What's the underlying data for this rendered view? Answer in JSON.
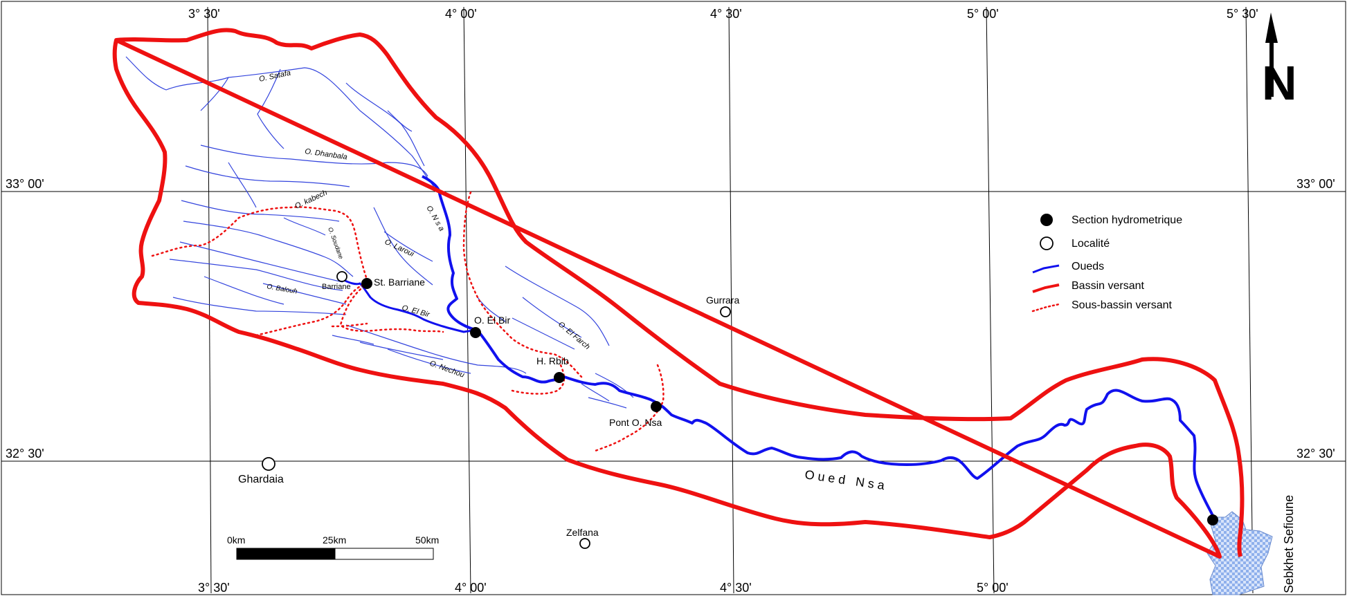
{
  "grid_labels": {
    "top": [
      "3° 30'",
      "4° 00'",
      "4° 30'",
      "5° 00'",
      "5° 30'"
    ],
    "bottom": [
      "3° 30'",
      "4° 00'",
      "4° 30'",
      "5° 00'"
    ],
    "left": [
      "33° 00'",
      "32° 30'"
    ],
    "right": [
      "33° 00'",
      "32° 30'"
    ]
  },
  "north_arrow": {
    "letter": "N"
  },
  "wadis": {
    "satafa": "O. Satafa",
    "dhanbala": "O. Dhanbala",
    "kabech": "O. kabech",
    "soudane": "O. Soudane",
    "laroui": "O. Laroui",
    "nsa": "O. N s a",
    "balouh": "O. Balouh",
    "el_bir": "O. El Bir",
    "el_farch": "O. El Farch",
    "nechou": "O. Nechou",
    "oued_nsa": "O u e d   N s a"
  },
  "places": {
    "barriane": "Barriane",
    "st_barriane": "St. Barriane",
    "o_el_bir": "O. El Bir",
    "h_rbib": "H. Rbib",
    "pont_o_nsa": "Pont O. Nsa",
    "gurrara": "Gurrara",
    "ghardaia": "Ghardaia",
    "zelfana": "Zelfana",
    "sebkhet": "Sebkhet Sefioune"
  },
  "legend": {
    "station": "Section hydrometrique",
    "locality": "Localité",
    "wadis": "Oueds",
    "basin": "Bassin versant",
    "subbasin": "Sous-bassin versant"
  },
  "scale_bar": {
    "labels": [
      "0km",
      "25km",
      "50km"
    ]
  },
  "colors": {
    "river": "#1111ee",
    "tributary": "#3344dd",
    "basin": "#ee1111",
    "subbasin": "#ee1111",
    "sebkha": "#aac4f0",
    "grid": "#000000"
  }
}
